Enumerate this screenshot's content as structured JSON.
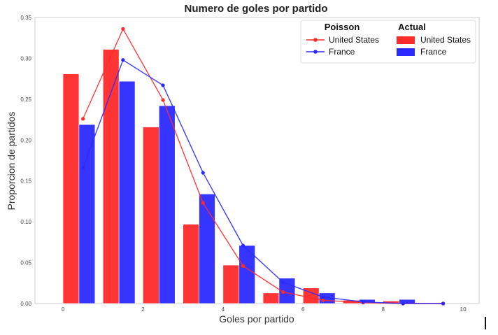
{
  "chart_data": {
    "type": "bar",
    "title": "Numero de goles por partido",
    "xlabel": "Goles por partido",
    "ylabel": "Proporcion de partidos",
    "xlim": [
      -0.7,
      10.4
    ],
    "ylim": [
      0,
      0.35
    ],
    "xticks": [
      0,
      2,
      4,
      6,
      8,
      10
    ],
    "yticks": [
      0.0,
      0.05,
      0.1,
      0.15,
      0.2,
      0.25,
      0.3,
      0.35
    ],
    "xtick_labels": [
      "0",
      "2",
      "4",
      "6",
      "8",
      "10"
    ],
    "ytick_labels": [
      "0.00",
      "0.05",
      "0.10",
      "0.15",
      "0.20",
      "0.25",
      "0.30",
      "0.35"
    ],
    "grid": false,
    "legend_position": "top-right",
    "legend": {
      "poisson_header": "Poisson",
      "actual_header": "Actual"
    },
    "colors": {
      "United States": "#ff2a2a",
      "France": "#2a2aff"
    },
    "bars": [
      {
        "name": "United States",
        "x": [
          0,
          1,
          2,
          3,
          4,
          5,
          6,
          7,
          8,
          9
        ],
        "values": [
          0.281,
          0.311,
          0.216,
          0.097,
          0.047,
          0.013,
          0.019,
          0.004,
          0.003,
          0.0
        ]
      },
      {
        "name": "France",
        "x": [
          0,
          1,
          2,
          3,
          4,
          5,
          6,
          7,
          8,
          9
        ],
        "values": [
          0.219,
          0.272,
          0.242,
          0.134,
          0.071,
          0.031,
          0.013,
          0.005,
          0.005,
          0.0
        ]
      }
    ],
    "lines": [
      {
        "name": "United States",
        "x": [
          0.5,
          1.5,
          2.5,
          3.5,
          4.5,
          5.5,
          6.5,
          7.5,
          8.5,
          9.5
        ],
        "values": [
          0.226,
          0.336,
          0.249,
          0.123,
          0.046,
          0.014,
          0.004,
          0.001,
          0.0,
          0.0
        ]
      },
      {
        "name": "France",
        "x": [
          0.5,
          1.5,
          2.5,
          3.5,
          4.5,
          5.5,
          6.5,
          7.5,
          8.5,
          9.5
        ],
        "values": [
          0.166,
          0.298,
          0.267,
          0.16,
          0.071,
          0.026,
          0.008,
          0.002,
          0.0,
          0.0
        ]
      }
    ]
  }
}
